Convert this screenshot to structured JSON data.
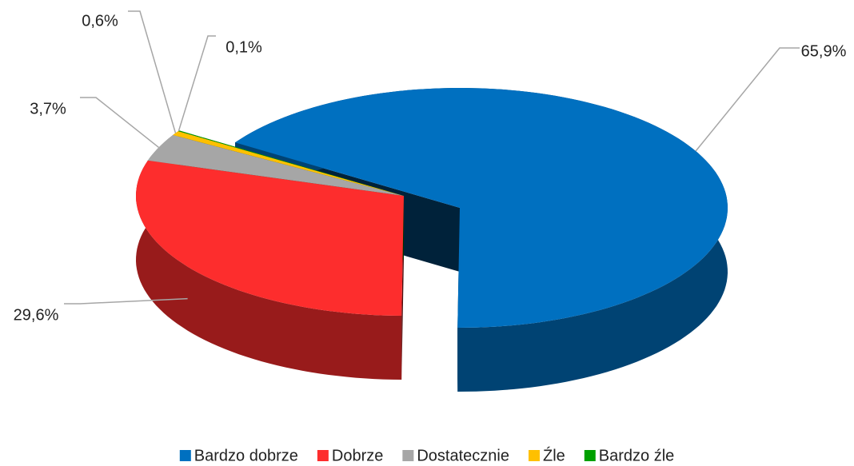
{
  "chart_data": {
    "type": "pie",
    "categories": [
      "Bardzo dobrze",
      "Dobrze",
      "Dostatecznie",
      "Źle",
      "Bardzo źle"
    ],
    "values": [
      65.9,
      29.6,
      3.7,
      0.6,
      0.1
    ],
    "value_labels": [
      "65,9%",
      "29,6%",
      "3,7%",
      "0,6%",
      "0,1%"
    ],
    "colors": [
      "#0070c0",
      "#fd2d2d",
      "#a6a6a6",
      "#ffc000",
      "#00a000"
    ],
    "legend": "bottom"
  }
}
